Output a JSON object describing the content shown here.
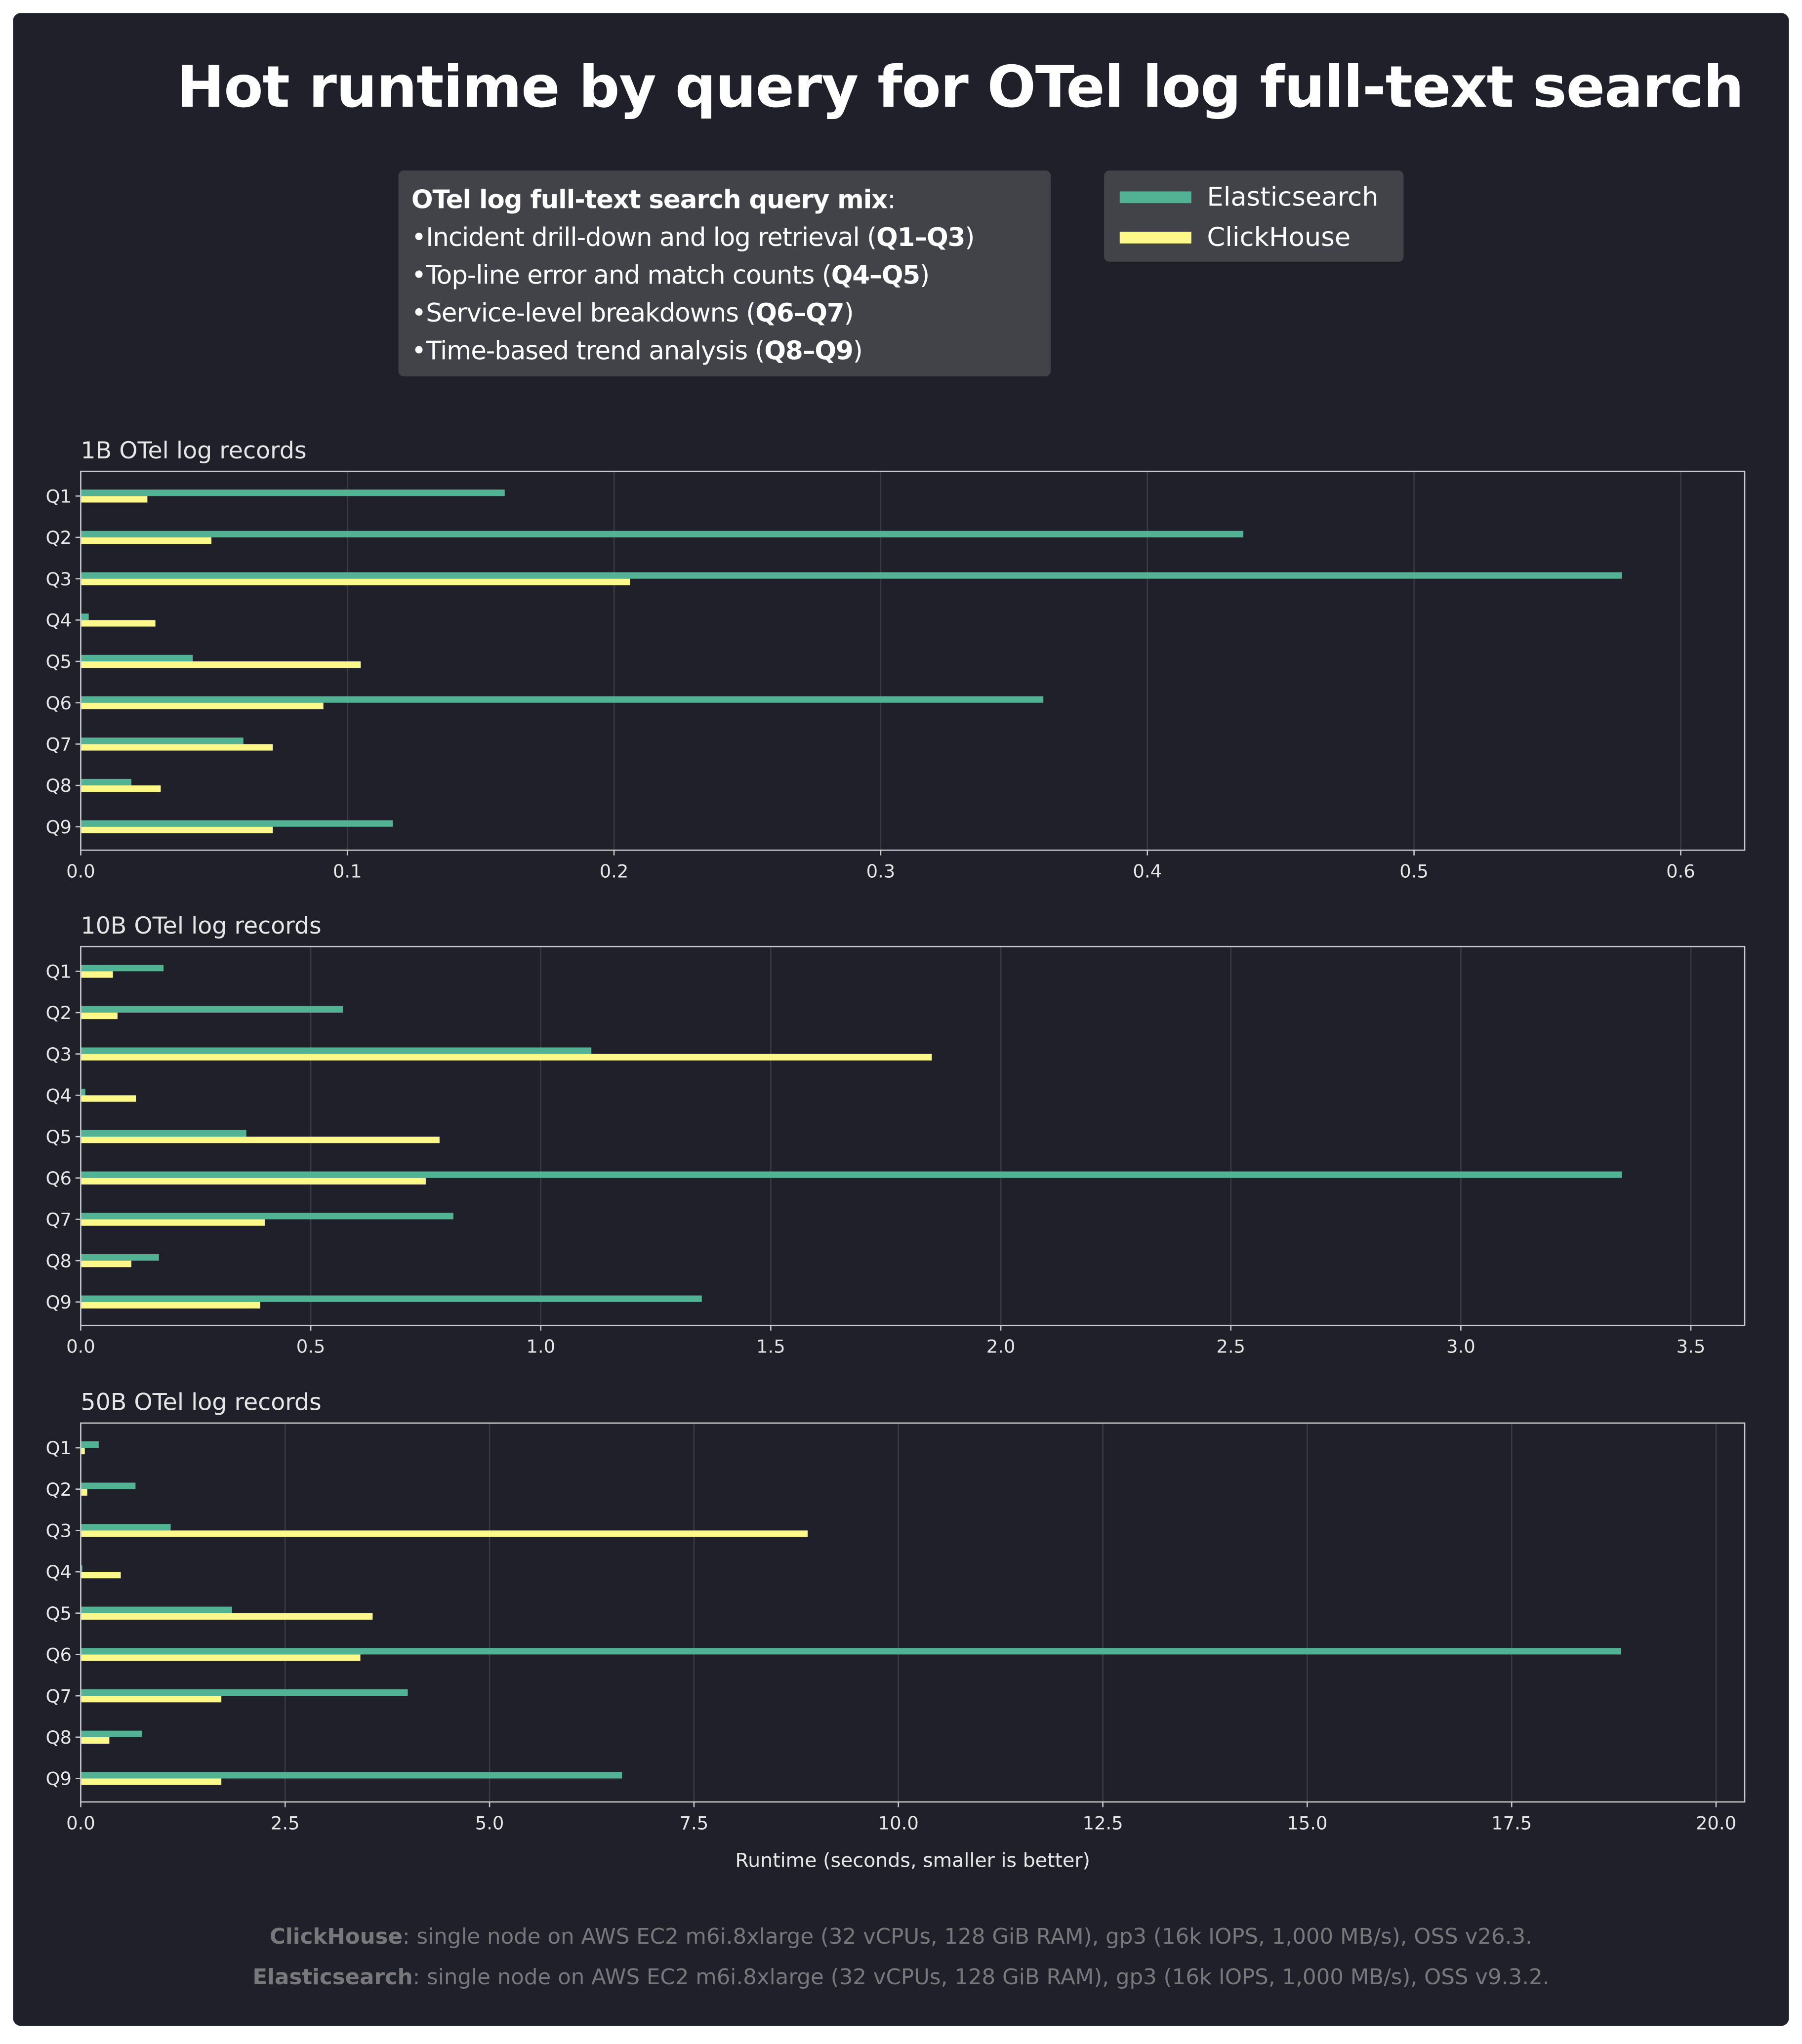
{
  "title": "Hot runtime by query for OTel log full-text search",
  "query_mix": {
    "heading": "OTel log full-text search query mix",
    "items": [
      {
        "text": "Incident drill-down and log retrieval",
        "range": "Q1–Q3"
      },
      {
        "text": "Top-line error and match counts",
        "range": "Q4–Q5"
      },
      {
        "text": "Service-level breakdowns",
        "range": "Q6–Q7"
      },
      {
        "text": "Time-based trend analysis",
        "range": "Q8–Q9"
      }
    ]
  },
  "legend": [
    {
      "name": "Elasticsearch",
      "color": "#52b394"
    },
    {
      "name": "ClickHouse",
      "color": "#fdf88a"
    }
  ],
  "colors": {
    "background": "#20202b",
    "grid": "#3a3a46",
    "axis": "#c8c8cc",
    "text": "#e6e6e6"
  },
  "chart_data": [
    {
      "type": "bar",
      "orientation": "horizontal",
      "title": "1B OTel log records",
      "categories": [
        "Q1",
        "Q2",
        "Q3",
        "Q4",
        "Q5",
        "Q6",
        "Q7",
        "Q8",
        "Q9"
      ],
      "xlim": [
        0,
        0.624
      ],
      "xticks": [
        "0.0",
        "0.1",
        "0.2",
        "0.3",
        "0.4",
        "0.5",
        "0.6"
      ],
      "xlabel": "",
      "grid": true,
      "series": [
        {
          "name": "Elasticsearch",
          "values": [
            0.159,
            0.436,
            0.578,
            0.003,
            0.042,
            0.361,
            0.061,
            0.019,
            0.117
          ]
        },
        {
          "name": "ClickHouse",
          "values": [
            0.025,
            0.049,
            0.206,
            0.028,
            0.105,
            0.091,
            0.072,
            0.03,
            0.072
          ]
        }
      ]
    },
    {
      "type": "bar",
      "orientation": "horizontal",
      "title": "10B OTel log records",
      "categories": [
        "Q1",
        "Q2",
        "Q3",
        "Q4",
        "Q5",
        "Q6",
        "Q7",
        "Q8",
        "Q9"
      ],
      "xlim": [
        0,
        3.617
      ],
      "xticks": [
        "0.0",
        "0.5",
        "1.0",
        "1.5",
        "2.0",
        "2.5",
        "3.0",
        "3.5"
      ],
      "xlabel": "",
      "grid": true,
      "series": [
        {
          "name": "Elasticsearch",
          "values": [
            0.18,
            0.57,
            1.11,
            0.01,
            0.36,
            3.35,
            0.81,
            0.17,
            1.35
          ]
        },
        {
          "name": "ClickHouse",
          "values": [
            0.07,
            0.08,
            1.85,
            0.12,
            0.78,
            0.75,
            0.4,
            0.11,
            0.39
          ]
        }
      ]
    },
    {
      "type": "bar",
      "orientation": "horizontal",
      "title": "50B OTel log records",
      "categories": [
        "Q1",
        "Q2",
        "Q3",
        "Q4",
        "Q5",
        "Q6",
        "Q7",
        "Q8",
        "Q9"
      ],
      "xlim": [
        0,
        20.35
      ],
      "xticks": [
        "0.0",
        "2.5",
        "5.0",
        "7.5",
        "10.0",
        "12.5",
        "15.0",
        "17.5",
        "20.0"
      ],
      "xlabel": "Runtime (seconds, smaller is better)",
      "grid": true,
      "series": [
        {
          "name": "Elasticsearch",
          "values": [
            0.22,
            0.67,
            1.1,
            0.02,
            1.85,
            18.84,
            4.0,
            0.75,
            6.62
          ]
        },
        {
          "name": "ClickHouse",
          "values": [
            0.05,
            0.08,
            8.89,
            0.49,
            3.57,
            3.42,
            1.72,
            0.35,
            1.72
          ]
        }
      ]
    }
  ],
  "footer": [
    {
      "name": "ClickHouse",
      "text": ": single node on AWS EC2 m6i.8xlarge (32 vCPUs, 128 GiB RAM), gp3 (16k IOPS, 1,000 MB/s), OSS v26.3."
    },
    {
      "name": "Elasticsearch",
      "text": ": single node on AWS EC2 m6i.8xlarge (32 vCPUs, 128 GiB RAM), gp3 (16k IOPS, 1,000 MB/s), OSS v9.3.2."
    }
  ]
}
